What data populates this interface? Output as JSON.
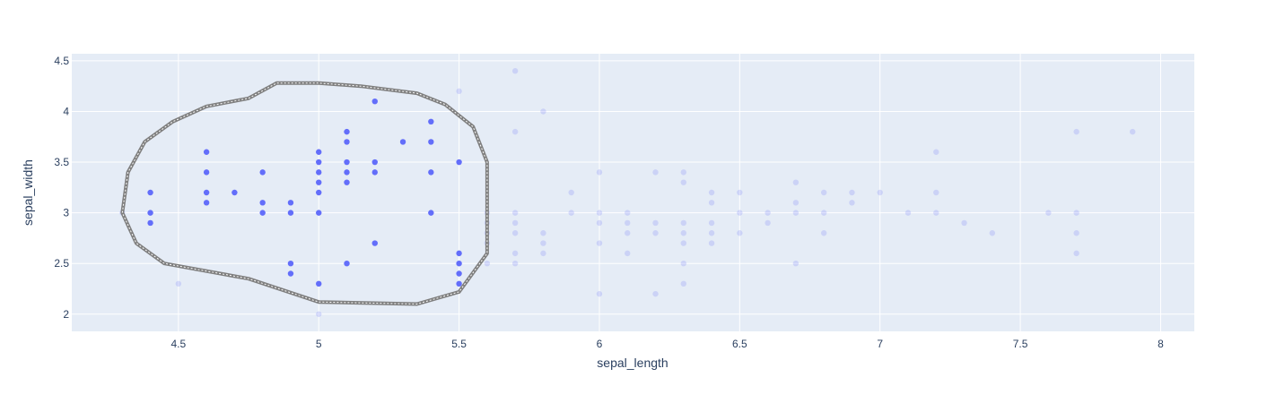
{
  "chart_data": {
    "type": "scatter",
    "xlabel": "sepal_length",
    "ylabel": "sepal_width",
    "xlim": [
      4.12,
      8.12
    ],
    "ylim": [
      1.83,
      4.57
    ],
    "xticks": [
      4.5,
      5,
      5.5,
      6,
      6.5,
      7,
      7.5,
      8
    ],
    "yticks": [
      2,
      2.5,
      3,
      3.5,
      4,
      4.5
    ],
    "grid": true,
    "colors": {
      "plot_background": "#e5ecf6",
      "grid": "#ffffff",
      "marker": "#636efa",
      "lasso_outline": "#7f7f7f"
    },
    "selected_opacity": 1.0,
    "unselected_opacity": 0.2,
    "lasso_selection": [
      [
        4.3,
        3.0
      ],
      [
        4.32,
        3.4
      ],
      [
        4.38,
        3.7
      ],
      [
        4.48,
        3.9
      ],
      [
        4.6,
        4.05
      ],
      [
        4.75,
        4.13
      ],
      [
        4.85,
        4.28
      ],
      [
        5.0,
        4.28
      ],
      [
        5.15,
        4.25
      ],
      [
        5.35,
        4.18
      ],
      [
        5.45,
        4.07
      ],
      [
        5.55,
        3.85
      ],
      [
        5.6,
        3.5
      ],
      [
        5.6,
        2.6
      ],
      [
        5.5,
        2.22
      ],
      [
        5.35,
        2.1
      ],
      [
        5.0,
        2.12
      ],
      [
        4.75,
        2.35
      ],
      [
        4.45,
        2.5
      ],
      [
        4.35,
        2.7
      ],
      [
        4.3,
        3.0
      ]
    ],
    "series": [
      {
        "selected": true,
        "points": [
          [
            4.4,
            3.2
          ],
          [
            4.4,
            3.0
          ],
          [
            4.4,
            2.9
          ],
          [
            4.6,
            3.6
          ],
          [
            4.6,
            3.4
          ],
          [
            4.6,
            3.2
          ],
          [
            4.6,
            3.1
          ],
          [
            4.7,
            3.2
          ],
          [
            4.8,
            3.4
          ],
          [
            4.8,
            3.1
          ],
          [
            4.8,
            3.0
          ],
          [
            4.9,
            3.1
          ],
          [
            4.9,
            3.0
          ],
          [
            4.9,
            2.5
          ],
          [
            4.9,
            2.4
          ],
          [
            5.0,
            3.6
          ],
          [
            5.0,
            3.5
          ],
          [
            5.0,
            3.4
          ],
          [
            5.0,
            3.3
          ],
          [
            5.0,
            3.2
          ],
          [
            5.0,
            3.0
          ],
          [
            5.0,
            2.3
          ],
          [
            5.1,
            3.8
          ],
          [
            5.1,
            3.7
          ],
          [
            5.1,
            3.5
          ],
          [
            5.1,
            3.4
          ],
          [
            5.1,
            3.3
          ],
          [
            5.1,
            2.5
          ],
          [
            5.2,
            4.1
          ],
          [
            5.2,
            3.5
          ],
          [
            5.2,
            3.4
          ],
          [
            5.2,
            2.7
          ],
          [
            5.3,
            3.7
          ],
          [
            5.4,
            3.9
          ],
          [
            5.4,
            3.7
          ],
          [
            5.4,
            3.4
          ],
          [
            5.4,
            3.0
          ],
          [
            5.5,
            3.5
          ],
          [
            5.5,
            2.6
          ],
          [
            5.5,
            2.5
          ],
          [
            5.5,
            2.4
          ],
          [
            5.5,
            2.3
          ]
        ]
      },
      {
        "selected": false,
        "points": [
          [
            4.3,
            3.0
          ],
          [
            4.5,
            2.3
          ],
          [
            5.0,
            2.0
          ],
          [
            5.5,
            4.2
          ],
          [
            5.6,
            3.0
          ],
          [
            5.6,
            2.9
          ],
          [
            5.6,
            2.8
          ],
          [
            5.6,
            2.7
          ],
          [
            5.6,
            2.5
          ],
          [
            5.7,
            4.4
          ],
          [
            5.7,
            3.8
          ],
          [
            5.7,
            3.0
          ],
          [
            5.7,
            2.9
          ],
          [
            5.7,
            2.8
          ],
          [
            5.7,
            2.6
          ],
          [
            5.7,
            2.5
          ],
          [
            5.8,
            4.0
          ],
          [
            5.8,
            2.8
          ],
          [
            5.8,
            2.7
          ],
          [
            5.8,
            2.6
          ],
          [
            5.9,
            3.2
          ],
          [
            5.9,
            3.0
          ],
          [
            6.0,
            3.4
          ],
          [
            6.0,
            3.0
          ],
          [
            6.0,
            2.9
          ],
          [
            6.0,
            2.7
          ],
          [
            6.0,
            2.2
          ],
          [
            6.1,
            3.0
          ],
          [
            6.1,
            2.9
          ],
          [
            6.1,
            2.8
          ],
          [
            6.1,
            2.6
          ],
          [
            6.2,
            3.4
          ],
          [
            6.2,
            2.9
          ],
          [
            6.2,
            2.8
          ],
          [
            6.2,
            2.2
          ],
          [
            6.3,
            3.4
          ],
          [
            6.3,
            3.3
          ],
          [
            6.3,
            2.9
          ],
          [
            6.3,
            2.8
          ],
          [
            6.3,
            2.7
          ],
          [
            6.3,
            2.5
          ],
          [
            6.3,
            2.3
          ],
          [
            6.4,
            3.2
          ],
          [
            6.4,
            3.1
          ],
          [
            6.4,
            2.9
          ],
          [
            6.4,
            2.8
          ],
          [
            6.4,
            2.7
          ],
          [
            6.5,
            3.2
          ],
          [
            6.5,
            3.0
          ],
          [
            6.5,
            2.8
          ],
          [
            6.6,
            3.0
          ],
          [
            6.6,
            2.9
          ],
          [
            6.7,
            3.3
          ],
          [
            6.7,
            3.1
          ],
          [
            6.7,
            3.0
          ],
          [
            6.7,
            2.5
          ],
          [
            6.8,
            3.2
          ],
          [
            6.8,
            3.0
          ],
          [
            6.8,
            2.8
          ],
          [
            6.9,
            3.2
          ],
          [
            6.9,
            3.1
          ],
          [
            7.0,
            3.2
          ],
          [
            7.1,
            3.0
          ],
          [
            7.2,
            3.6
          ],
          [
            7.2,
            3.2
          ],
          [
            7.2,
            3.0
          ],
          [
            7.3,
            2.9
          ],
          [
            7.4,
            2.8
          ],
          [
            7.6,
            3.0
          ],
          [
            7.7,
            3.8
          ],
          [
            7.7,
            3.0
          ],
          [
            7.7,
            2.8
          ],
          [
            7.7,
            2.6
          ],
          [
            7.9,
            3.8
          ]
        ]
      }
    ]
  }
}
